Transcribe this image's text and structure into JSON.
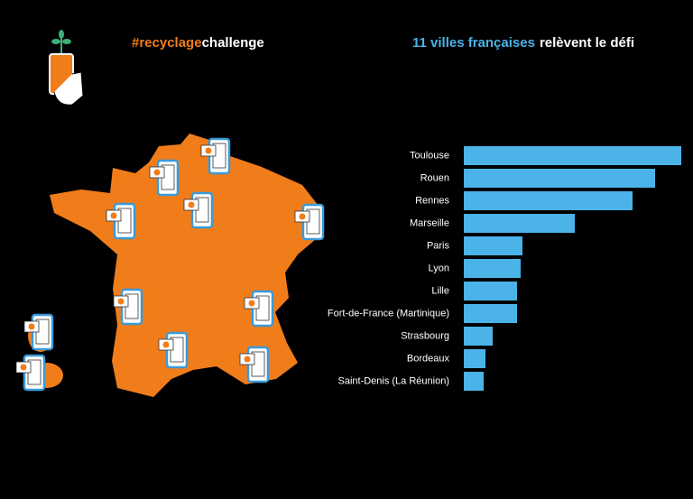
{
  "header": {
    "hashtag": [
      "#recyclage",
      "challenge"
    ],
    "headline": [
      "11 villes françaises",
      "relèvent le défi"
    ]
  },
  "chart_data": {
    "type": "bar",
    "orientation": "horizontal",
    "categories": [
      "Toulouse",
      "Rouen",
      "Rennes",
      "Marseille",
      "Paris",
      "Lyon",
      "Lille",
      "Fort-de-France (Martinique)",
      "Strasbourg",
      "Bordeaux",
      "Saint-Denis (La Réunion)"
    ],
    "values": [
      241,
      212,
      187,
      123,
      65,
      63,
      59,
      59,
      32,
      24,
      22
    ],
    "color": "#4bb3e8"
  }
}
